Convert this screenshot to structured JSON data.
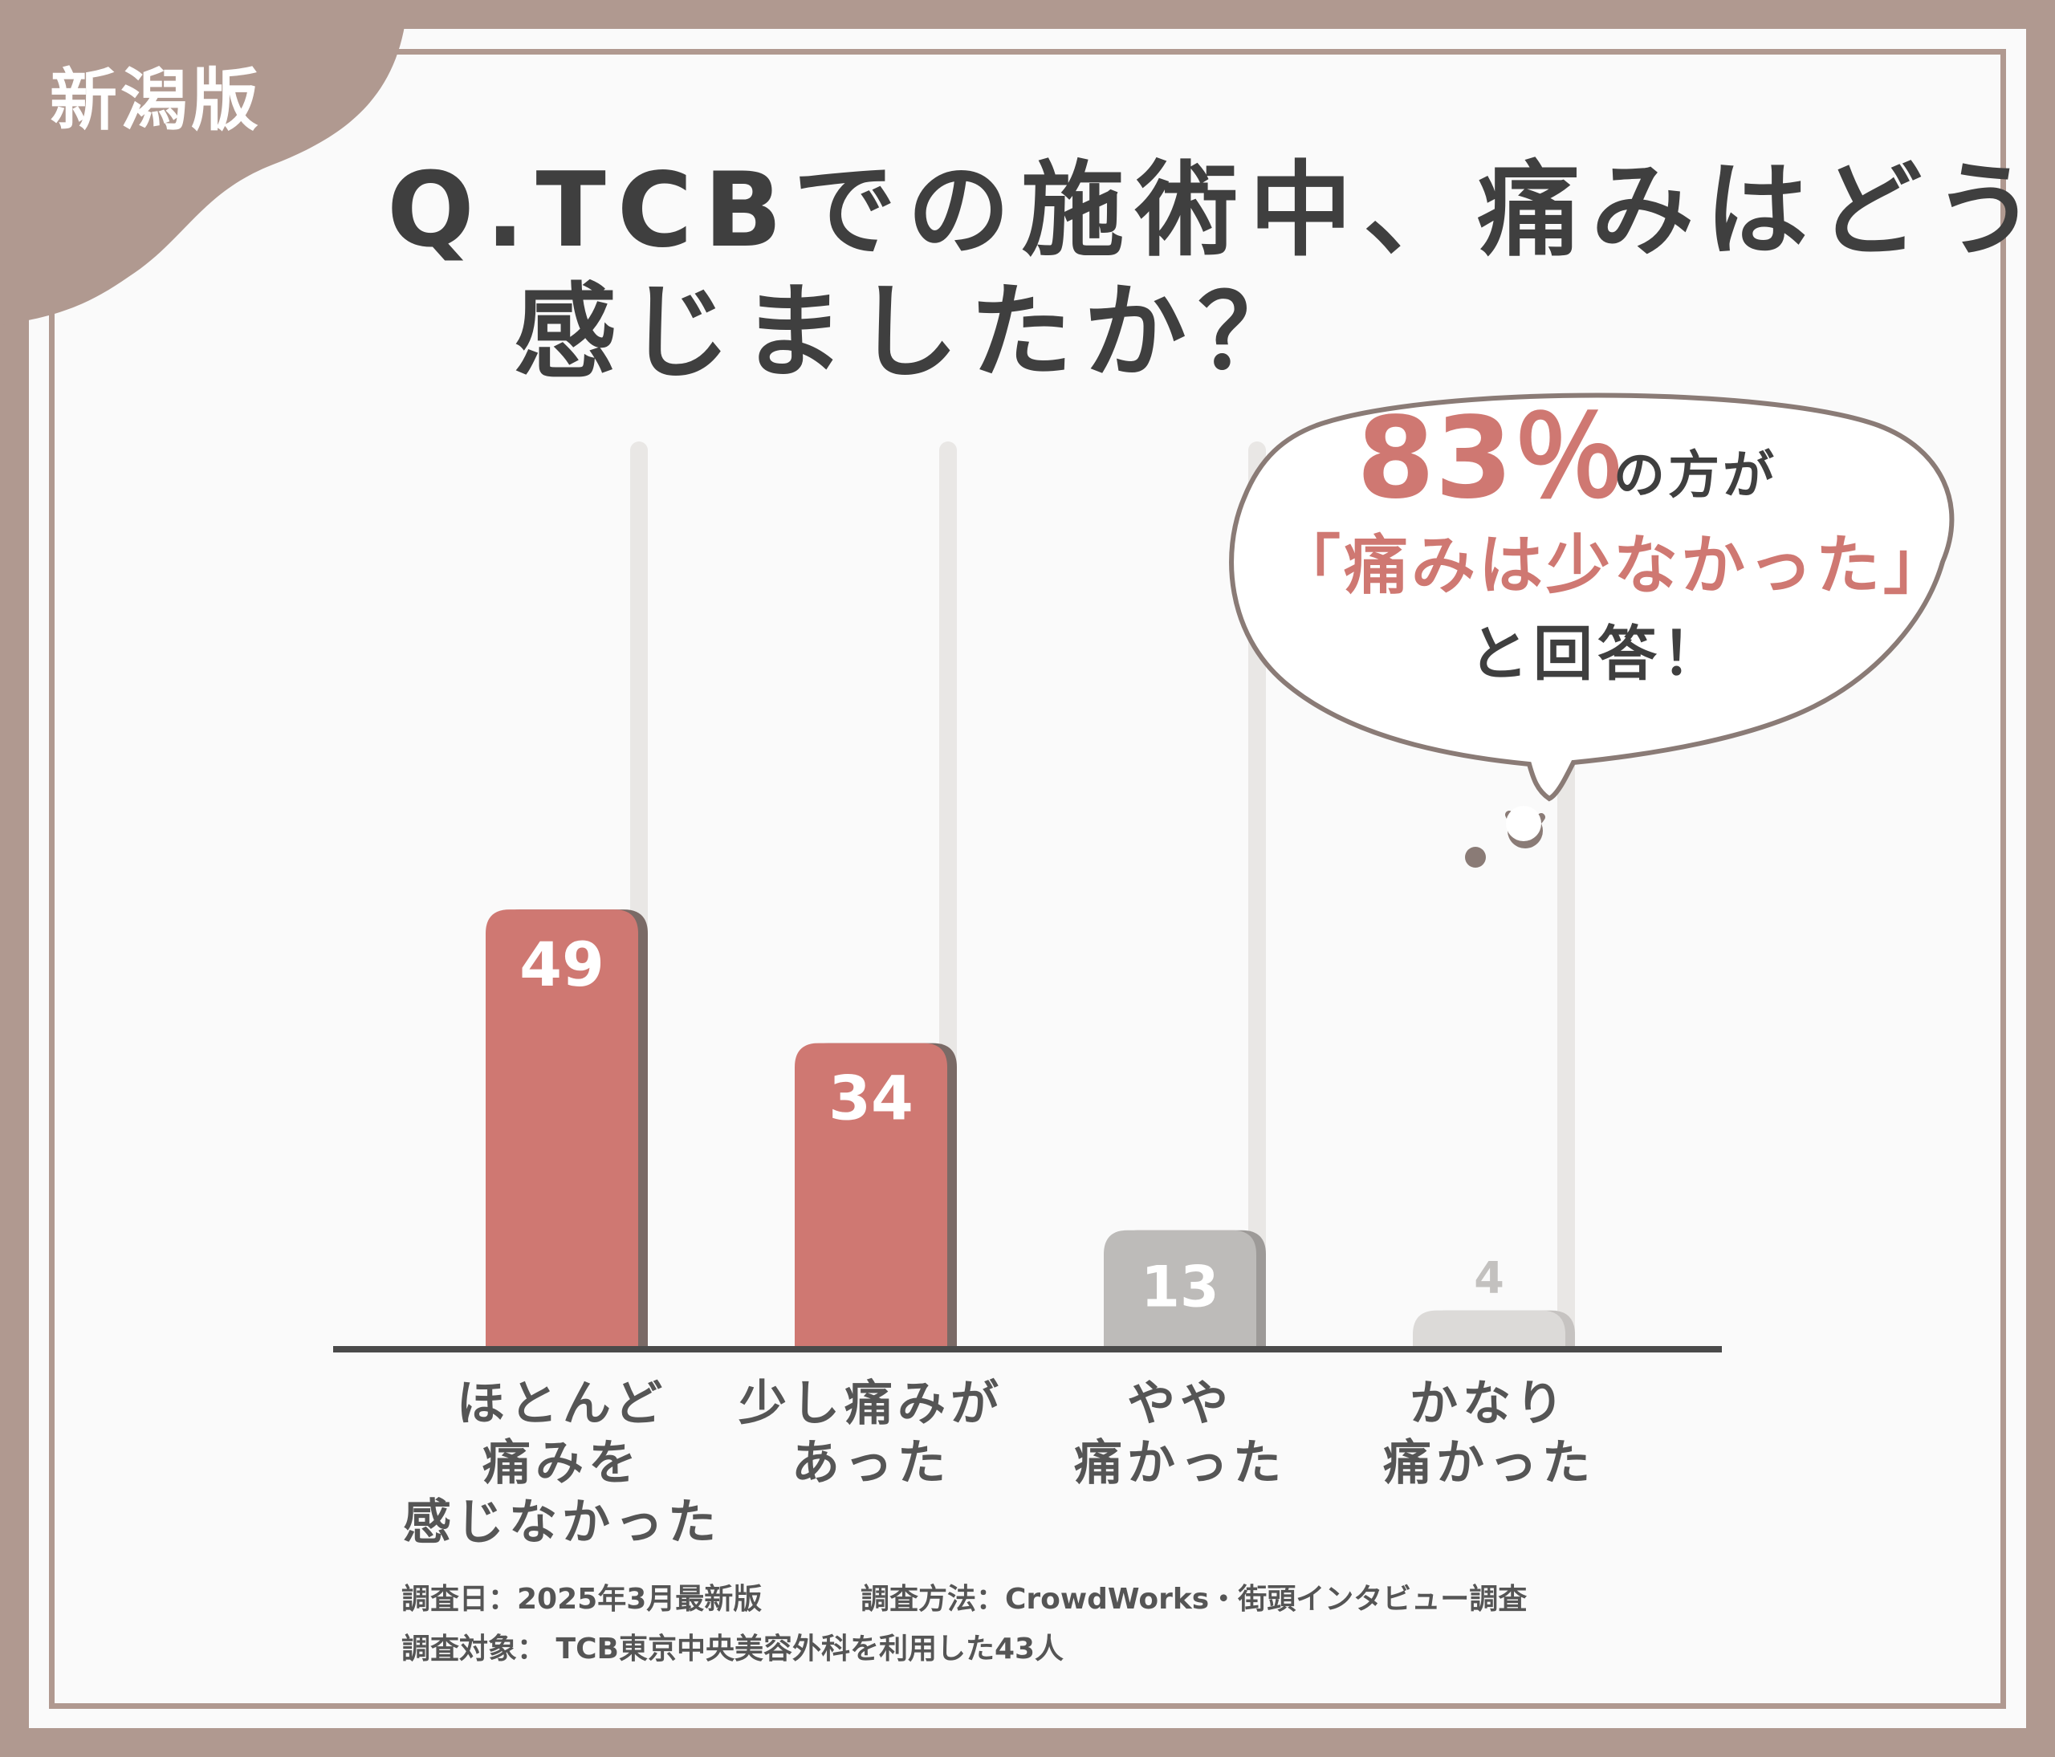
{
  "region_tag": "新潟版",
  "title": {
    "line1": "Q.TCBでの施術中、痛みはどう",
    "line2": "感じましたか？"
  },
  "callout": {
    "percent": "83％",
    "percent_suffix": "の方が",
    "quote": "「痛みは少なかった」",
    "answer": "と回答！"
  },
  "chart_data": {
    "type": "bar",
    "title": "Q.TCBでの施術中、痛みはどう感じましたか？",
    "categories": [
      [
        "ほとんど",
        "痛みを",
        "感じなかった"
      ],
      [
        "少し痛みが",
        "あった"
      ],
      [
        "やや",
        "痛かった"
      ],
      [
        "かなり",
        "痛かった"
      ]
    ],
    "values": [
      49,
      34,
      13,
      4
    ],
    "value_labels": [
      "49",
      "34",
      "13",
      "4"
    ],
    "ylim": [
      0,
      100
    ],
    "grid": false,
    "legend": "none",
    "colors": {
      "highlight": "#cf7872",
      "neutral": "#bdbbb9",
      "low": "#dcdad8",
      "axis": "#4a4a4a",
      "track": "#e9e7e5"
    }
  },
  "footer": {
    "date": "調査日：2025年3月最新版",
    "method": "調査方法：CrowdWorks・街頭インタビュー調査",
    "target": "調査対象： TCB東京中央美容外科を利用した43人"
  }
}
